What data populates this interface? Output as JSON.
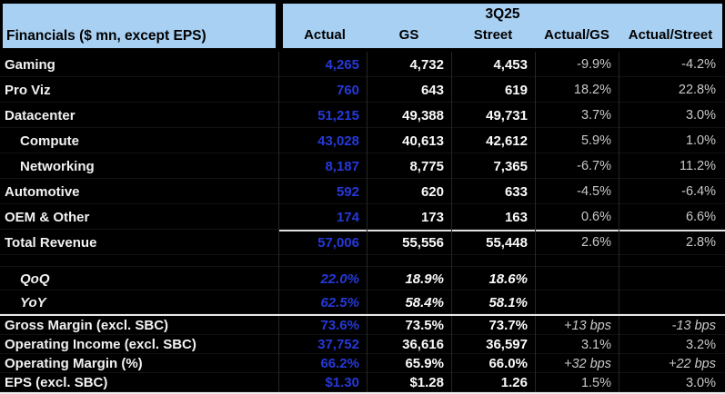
{
  "colors": {
    "header_bg": "#a8d0f2",
    "background": "#000000",
    "actual_text": "#2639d9",
    "estimate_text": "#fafafa",
    "delta_text": "#c9c9c9"
  },
  "header": {
    "title_left": "Financials ($ mn, except EPS)",
    "period": "3Q25",
    "columns": [
      "Actual",
      "GS",
      "Street",
      "Actual/GS",
      "Actual/Street"
    ]
  },
  "table": {
    "rows": [
      {
        "label": "Gaming",
        "actual": "4,265",
        "gs": "4,732",
        "street": "4,453",
        "vs_gs": "-9.9%",
        "vs_street": "-4.2%",
        "group": "revenue"
      },
      {
        "label": "Pro Viz",
        "actual": "760",
        "gs": "643",
        "street": "619",
        "vs_gs": "18.2%",
        "vs_street": "22.8%",
        "group": "revenue"
      },
      {
        "label": "Datacenter",
        "actual": "51,215",
        "gs": "49,388",
        "street": "49,731",
        "vs_gs": "3.7%",
        "vs_street": "3.0%",
        "group": "revenue"
      },
      {
        "label": "Compute",
        "actual": "43,028",
        "gs": "40,613",
        "street": "42,612",
        "vs_gs": "5.9%",
        "vs_street": "1.0%",
        "group": "revenue",
        "indent": true
      },
      {
        "label": "Networking",
        "actual": "8,187",
        "gs": "8,775",
        "street": "7,365",
        "vs_gs": "-6.7%",
        "vs_street": "11.2%",
        "group": "revenue",
        "indent": true
      },
      {
        "label": "Automotive",
        "actual": "592",
        "gs": "620",
        "street": "633",
        "vs_gs": "-4.5%",
        "vs_street": "-6.4%",
        "group": "revenue"
      },
      {
        "label": "OEM & Other",
        "actual": "174",
        "gs": "173",
        "street": "163",
        "vs_gs": "0.6%",
        "vs_street": "6.6%",
        "group": "revenue"
      },
      {
        "label": "Total Revenue",
        "actual": "57,006",
        "gs": "55,556",
        "street": "55,448",
        "vs_gs": "2.6%",
        "vs_street": "2.8%",
        "group": "total"
      },
      {
        "spacer": true,
        "group": "spacer"
      },
      {
        "label": "QoQ",
        "actual": "22.0%",
        "gs": "18.9%",
        "street": "18.6%",
        "vs_gs": "",
        "vs_street": "",
        "group": "growth",
        "indent": true,
        "italic": true
      },
      {
        "label": "YoY",
        "actual": "62.5%",
        "gs": "58.4%",
        "street": "58.1%",
        "vs_gs": "",
        "vs_street": "",
        "group": "growth",
        "indent": true,
        "italic": true
      },
      {
        "label": "Gross Margin (excl. SBC)",
        "actual": "73.6%",
        "gs": "73.5%",
        "street": "73.7%",
        "vs_gs": "+13 bps",
        "vs_street": "-13 bps",
        "group": "margin",
        "divider_top": true,
        "vs_italic": true
      },
      {
        "label": "Operating Income (excl. SBC)",
        "actual": "37,752",
        "gs": "36,616",
        "street": "36,597",
        "vs_gs": "3.1%",
        "vs_street": "3.2%",
        "group": "margin"
      },
      {
        "label": "Operating Margin (%)",
        "actual": "66.2%",
        "gs": "65.9%",
        "street": "66.0%",
        "vs_gs": "+32 bps",
        "vs_street": "+22 bps",
        "group": "margin",
        "vs_italic": true
      },
      {
        "label": "EPS (excl. SBC)",
        "actual": "$1.30",
        "gs": "$1.28",
        "street": "1.26",
        "vs_gs": "1.5%",
        "vs_street": "3.0%",
        "group": "margin"
      }
    ]
  }
}
